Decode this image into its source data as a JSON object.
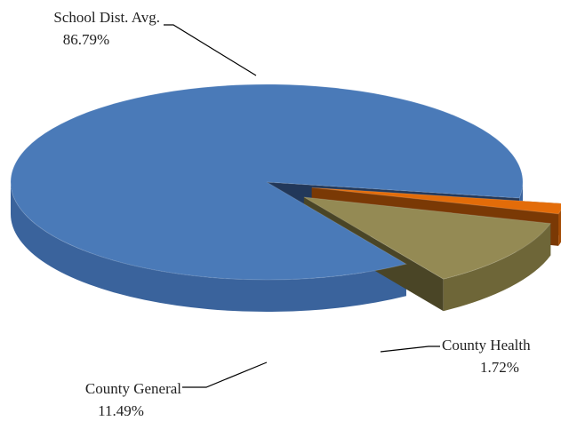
{
  "chart_data": {
    "type": "pie",
    "title": "",
    "slices": [
      {
        "label": "School Dist. Avg.",
        "value": 86.79,
        "value_label": "86.79%",
        "color": "#4a7ab8",
        "side_color": "#3a639c",
        "dark_color": "#22385a",
        "exploded": false
      },
      {
        "label": "County Health",
        "value": 1.72,
        "value_label": "1.72%",
        "color": "#e36c09",
        "side_color": "#a34c06",
        "dark_color": "#7a3905",
        "exploded": true
      },
      {
        "label": "County General",
        "value": 11.49,
        "value_label": "11.49%",
        "color": "#948a54",
        "side_color": "#6e6638",
        "dark_color": "#4a4526",
        "exploded": true
      }
    ],
    "legend": "none",
    "style": "3d-exploded"
  }
}
